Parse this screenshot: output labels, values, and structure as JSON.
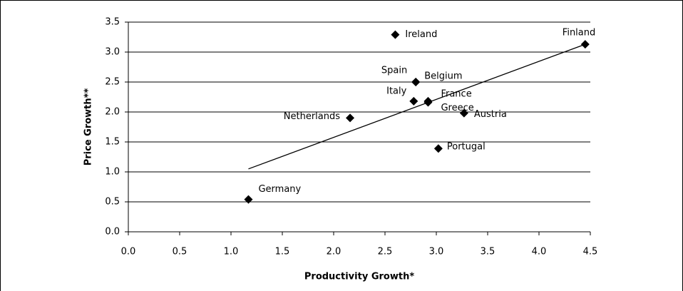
{
  "chart_data": {
    "type": "scatter",
    "xlabel": "Productivity Growth*",
    "ylabel": "Price Growth**",
    "labels": [
      "Ireland",
      "Finland",
      "Spain",
      "Belgium",
      "Italy",
      "France",
      "Greece",
      "Austria",
      "Netherlands",
      "Portugal",
      "Germany"
    ],
    "x": [
      2.6,
      4.45,
      2.8,
      2.8,
      2.78,
      2.92,
      2.92,
      3.27,
      2.16,
      3.02,
      1.17
    ],
    "y": [
      3.29,
      3.13,
      2.5,
      2.5,
      2.18,
      2.18,
      2.16,
      1.98,
      1.9,
      1.39,
      0.54
    ],
    "color": "#000000",
    "trendline": {
      "x": [
        1.17,
        4.45
      ],
      "y": [
        1.05,
        3.13
      ]
    },
    "xlim": [
      0,
      4.5
    ],
    "ylim": [
      0,
      3.5
    ],
    "xticks": [
      {
        "value": 0,
        "label": "0.0"
      },
      {
        "value": 0.5,
        "label": "0.5"
      },
      {
        "value": 1,
        "label": "1.0"
      },
      {
        "value": 1.5,
        "label": "1.5"
      },
      {
        "value": 2,
        "label": "2.0"
      },
      {
        "value": 2.5,
        "label": "2.5"
      },
      {
        "value": 3,
        "label": "3.0"
      },
      {
        "value": 3.5,
        "label": "3.5"
      },
      {
        "value": 4,
        "label": "4.0"
      },
      {
        "value": 4.5,
        "label": "4.5"
      }
    ],
    "yticks": [
      {
        "value": 0,
        "label": "0.0"
      },
      {
        "value": 0.5,
        "label": "0.5"
      },
      {
        "value": 1,
        "label": "1.0"
      },
      {
        "value": 1.5,
        "label": "1.5"
      },
      {
        "value": 2,
        "label": "2.0"
      },
      {
        "value": 2.5,
        "label": "2.5"
      },
      {
        "value": 3,
        "label": "3.0"
      },
      {
        "value": 3.5,
        "label": "3.5"
      }
    ],
    "grid": true
  }
}
